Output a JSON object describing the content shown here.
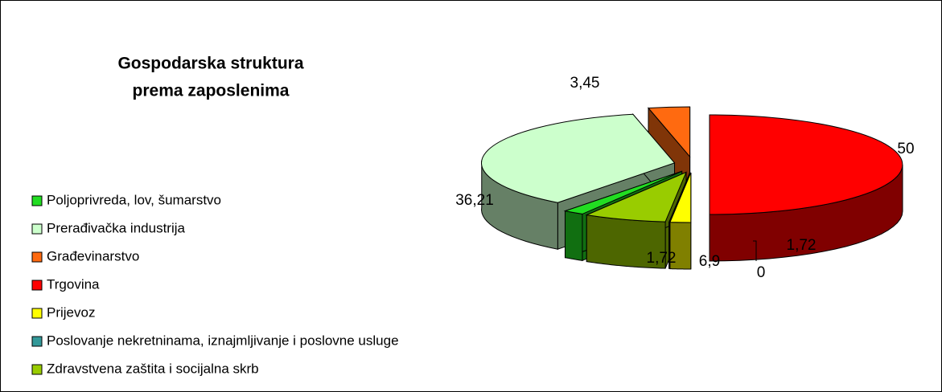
{
  "chart_data": {
    "type": "pie3d",
    "title": "Gospodarska struktura prema zaposlenima",
    "title_lines": [
      "Gospodarska struktura",
      "prema zaposlenima"
    ],
    "categories": [
      "Poljoprivreda, lov, šumarstvo",
      "Prerađivačka industrija",
      "Građevinarstvo",
      "Trgovina",
      "Prijevoz",
      "Poslovanje nekretninama, iznajmljivanje i poslovne usluge",
      "Zdravstvena zaštita i socijalna skrb"
    ],
    "values": [
      1.72,
      36.21,
      3.45,
      50,
      1.72,
      0,
      6.9
    ],
    "value_labels": [
      "1,72",
      "36,21",
      "3,45",
      "50",
      "1,72",
      "0",
      "6,9"
    ],
    "colors": [
      "#22dd22",
      "#ccffcc",
      "#ff6a10",
      "#ff0000",
      "#ffff00",
      "#339999",
      "#99cc00"
    ],
    "legend": "left"
  }
}
